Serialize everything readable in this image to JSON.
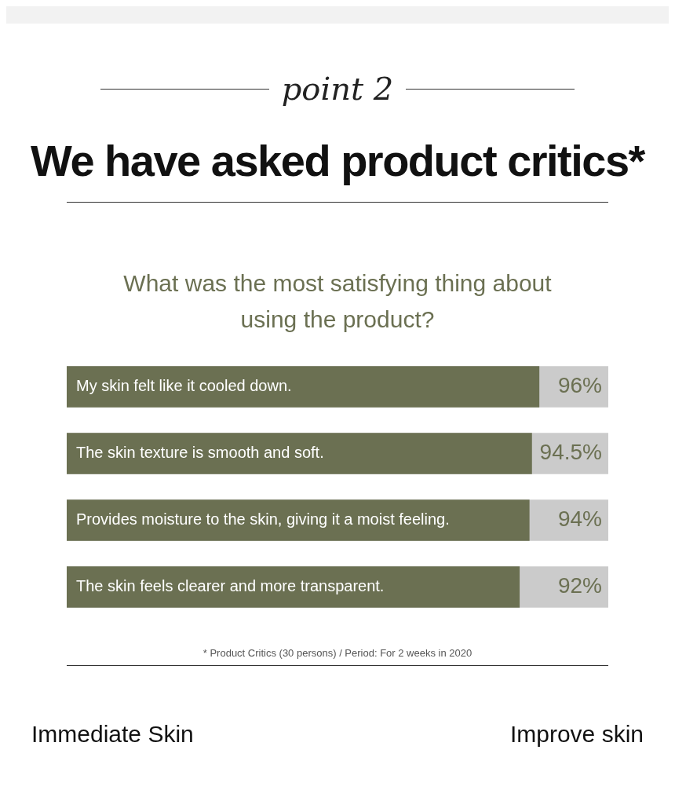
{
  "chart_data": {
    "type": "bar",
    "orientation": "horizontal",
    "title": "We have asked product critics*",
    "subtitle": "What was the most satisfying thing about using the product?",
    "categories": [
      "My skin felt like it cooled down.",
      "The skin texture is smooth and soft.",
      "Provides moisture to the skin, giving it a moist feeling.",
      "The skin feels clearer and more transparent."
    ],
    "values": [
      96,
      94.5,
      94,
      92
    ],
    "color": "#6b7052",
    "value_labels": [
      "96%",
      "94.5%",
      "94%",
      "92%"
    ],
    "xlim": [
      0,
      110
    ],
    "tick_labels": false,
    "bands": [
      {
        "axis": "x",
        "from": 0,
        "to": 110,
        "color": "#cbcbcb"
      }
    ],
    "annotations": [
      "point 2",
      "* Product Critics (30 persons) / Period: For 2 weeks in 2020",
      "Immediate Skin",
      "Improve skin"
    ]
  }
}
